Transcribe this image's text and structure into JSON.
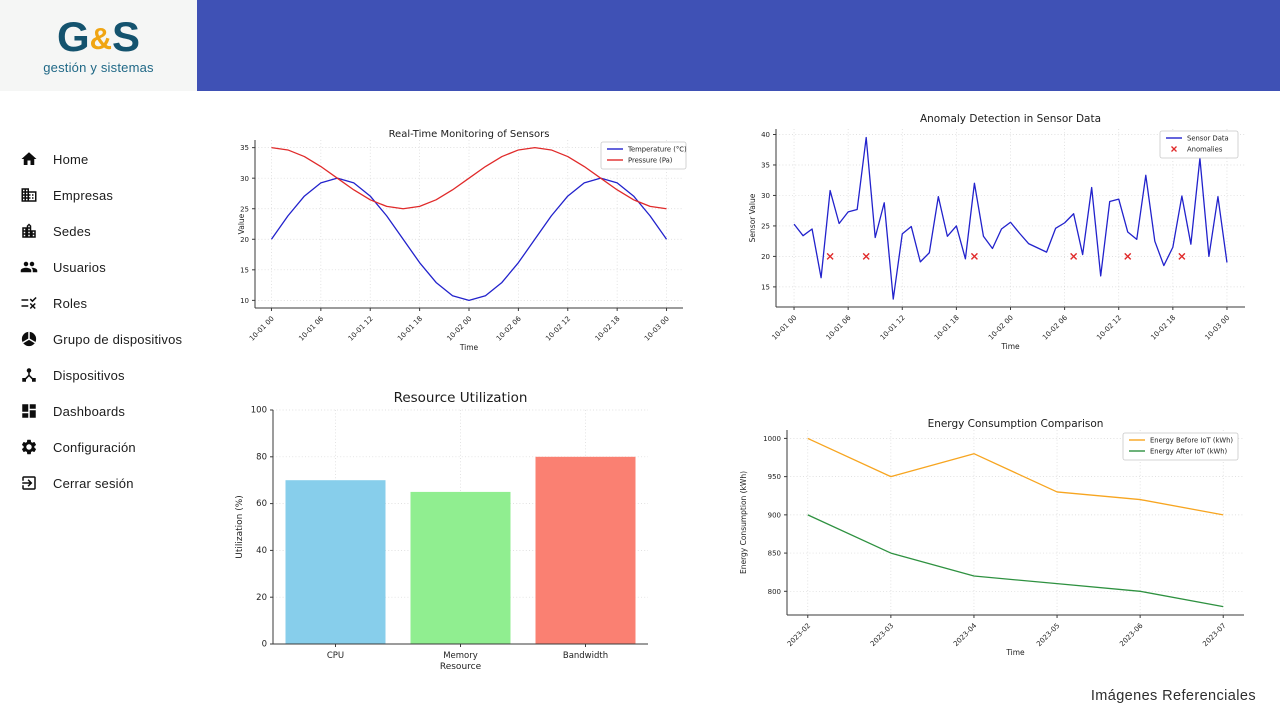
{
  "brand": {
    "letter_g": "G",
    "ampersand": "&",
    "letter_s": "S",
    "subtitle": "gestión y sistemas",
    "color_letters": "#14536e",
    "color_ampersand": "#f0a513"
  },
  "header": {
    "bar_color": "#3f51b5"
  },
  "sidebar": {
    "items": [
      {
        "label": "Home",
        "icon": "home-icon"
      },
      {
        "label": "Empresas",
        "icon": "companies-building-icon"
      },
      {
        "label": "Sedes",
        "icon": "sites-city-icon"
      },
      {
        "label": "Usuarios",
        "icon": "users-group-icon"
      },
      {
        "label": "Roles",
        "icon": "roles-rule-icon"
      },
      {
        "label": "Grupo de dispositivos",
        "icon": "device-group-icon"
      },
      {
        "label": "Dispositivos",
        "icon": "devices-hub-icon"
      },
      {
        "label": "Dashboards",
        "icon": "dashboards-grid-icon"
      },
      {
        "label": "Configuración",
        "icon": "settings-gear-icon"
      },
      {
        "label": "Cerrar sesión",
        "icon": "logout-icon"
      }
    ]
  },
  "footer": {
    "caption": "Imágenes Referenciales"
  },
  "chart_data": [
    {
      "id": "realtime-monitoring",
      "type": "line",
      "title": "Real-Time Monitoring of Sensors",
      "xlabel": "Time",
      "ylabel": "Value",
      "x": [
        0,
        2,
        4,
        6,
        8,
        10,
        12,
        14,
        16,
        18,
        20,
        22,
        24,
        26,
        28,
        30,
        32,
        34,
        36,
        38,
        40,
        42,
        44,
        46,
        48
      ],
      "series": [
        {
          "name": "Temperature (°C)",
          "color": "#2222cc",
          "values": [
            20,
            23.83,
            27.07,
            29.24,
            30,
            29.24,
            27.07,
            23.83,
            20,
            16.17,
            12.93,
            10.76,
            10,
            10.76,
            12.93,
            16.17,
            20,
            23.83,
            27.07,
            29.24,
            30,
            29.24,
            27.07,
            23.83,
            20
          ]
        },
        {
          "name": "Pressure (Pa)",
          "color": "#e02a2a",
          "values": [
            35,
            34.62,
            33.54,
            31.91,
            30,
            28.09,
            26.46,
            25.38,
            25,
            25.38,
            26.46,
            28.09,
            30,
            31.91,
            33.54,
            34.62,
            35,
            34.62,
            33.54,
            31.91,
            30,
            28.09,
            26.46,
            25.38,
            25
          ]
        }
      ],
      "xticks": [
        0,
        6,
        12,
        18,
        24,
        30,
        36,
        42,
        48
      ],
      "xtick_labels": [
        "10-01 00",
        "10-01 06",
        "10-01 12",
        "10-01 18",
        "10-02 00",
        "10-02 06",
        "10-02 12",
        "10-02 18",
        "10-03 00"
      ],
      "yticks": [
        10,
        15,
        20,
        25,
        30,
        35
      ],
      "xlim": [
        -2,
        50
      ],
      "ylim": [
        8.75,
        36.25
      ],
      "grid": true,
      "legend_position": "top-right"
    },
    {
      "id": "anomaly-detection",
      "type": "line",
      "title": "Anomaly Detection in Sensor Data",
      "xlabel": "Time",
      "ylabel": "Sensor Value",
      "x": [
        0,
        1,
        2,
        3,
        4,
        5,
        6,
        7,
        8,
        9,
        10,
        11,
        12,
        13,
        14,
        15,
        16,
        17,
        18,
        19,
        20,
        21,
        22,
        23,
        24,
        25,
        26,
        27,
        28,
        29,
        30,
        31,
        32,
        33,
        34,
        35,
        36,
        37,
        38,
        39,
        40,
        41,
        42,
        43,
        44,
        45,
        46,
        47,
        48
      ],
      "series": [
        {
          "name": "Sensor Data",
          "color": "#2222cc",
          "values": [
            25.3,
            23.4,
            24.5,
            16.5,
            30.8,
            25.4,
            27.3,
            27.7,
            39.5,
            23.1,
            28.8,
            13.0,
            23.7,
            24.9,
            19.1,
            20.6,
            29.8,
            23.3,
            25.0,
            19.6,
            32.0,
            23.3,
            21.3,
            24.5,
            25.6,
            23.8,
            22.1,
            21.4,
            20.7,
            24.6,
            25.5,
            27.0,
            20.3,
            31.3,
            16.8,
            29.0,
            29.4,
            24.0,
            22.8,
            33.3,
            22.5,
            18.5,
            21.5,
            29.9,
            22.0,
            36.1,
            20.0,
            29.8,
            19.0
          ]
        }
      ],
      "markers": {
        "name": "Anomalies",
        "color": "#e02a2a",
        "x": [
          4,
          8,
          20,
          31,
          37,
          43
        ],
        "y": [
          20,
          20,
          20,
          20,
          20,
          20
        ]
      },
      "xticks": [
        0,
        6,
        12,
        18,
        24,
        30,
        36,
        42,
        48
      ],
      "xtick_labels": [
        "10-01 00",
        "10-01 06",
        "10-01 12",
        "10-01 18",
        "10-02 00",
        "10-02 06",
        "10-02 12",
        "10-02 18",
        "10-03 00"
      ],
      "yticks": [
        15,
        20,
        25,
        30,
        35,
        40
      ],
      "xlim": [
        -2,
        50
      ],
      "ylim": [
        11.7,
        40.9
      ],
      "grid": true,
      "legend_position": "top-right"
    },
    {
      "id": "resource-utilization",
      "type": "bar",
      "title": "Resource Utilization",
      "xlabel": "Resource",
      "ylabel": "Utilization (%)",
      "categories": [
        "CPU",
        "Memory",
        "Bandwidth"
      ],
      "values": [
        70,
        65,
        80
      ],
      "colors": [
        "#87ceeb",
        "#90ee90",
        "#fa8072"
      ],
      "yticks": [
        0,
        20,
        40,
        60,
        80,
        100
      ],
      "xlim": [
        -0.5,
        2.5
      ],
      "ylim": [
        0,
        100
      ],
      "grid": true
    },
    {
      "id": "energy-comparison",
      "type": "line",
      "title": "Energy Consumption Comparison",
      "xlabel": "Time",
      "ylabel": "Energy Consumption (kWh)",
      "categories": [
        "2023-02",
        "2023-03",
        "2023-04",
        "2023-05",
        "2023-06",
        "2023-07"
      ],
      "series": [
        {
          "name": "Energy Before IoT (kWh)",
          "color": "#f7a520",
          "values": [
            1000,
            950,
            980,
            930,
            920,
            900
          ]
        },
        {
          "name": "Energy After IoT (kWh)",
          "color": "#2e9140",
          "values": [
            900,
            850,
            820,
            810,
            800,
            780
          ]
        }
      ],
      "xticks": [
        0,
        1,
        2,
        3,
        4,
        5
      ],
      "xtick_labels": [
        "2023-02",
        "2023-03",
        "2023-04",
        "2023-05",
        "2023-06",
        "2023-07"
      ],
      "yticks": [
        800,
        850,
        900,
        950,
        1000
      ],
      "xlim": [
        -0.25,
        5.25
      ],
      "ylim": [
        769,
        1011
      ],
      "grid": true,
      "legend_position": "top-right"
    }
  ]
}
